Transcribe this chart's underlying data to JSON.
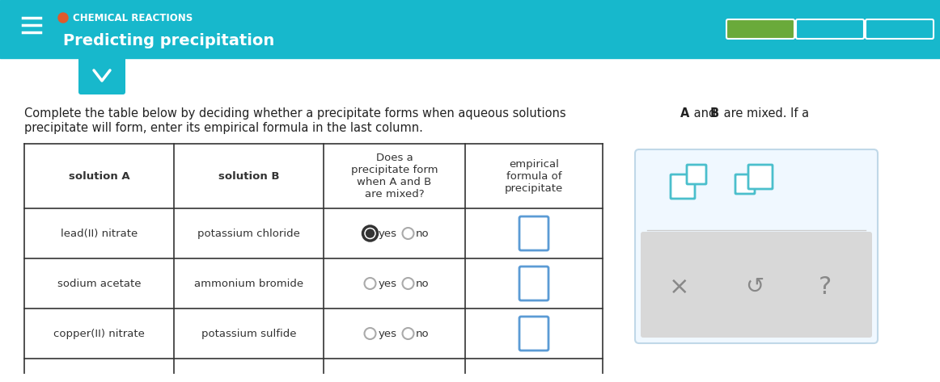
{
  "header_bg": "#17B8CC",
  "header_text_color": "#ffffff",
  "header_label": "CHEMICAL REACTIONS",
  "header_title": "Predicting precipitation",
  "header_dot_color": "#e05a2b",
  "page_bg": "#ffffff",
  "body_text": "Complete the table below by deciding whether a precipitate forms when aqueous solutions",
  "body_text_bold_A": "A",
  "body_text_mid": "and",
  "body_text_bold_B": "B",
  "body_text_end": "are mixed. If a\nprecipitate will form, enter its empirical formula in the last column.",
  "col_headers": [
    "solution A",
    "solution B",
    "Does a\nprecipitate form\nwhen A and B\nare mixed?",
    "empirical\nformula of\nprecipitate"
  ],
  "rows": [
    [
      "lead(II) nitrate",
      "potassium chloride",
      "yes_selected",
      "input_box"
    ],
    [
      "sodium acetate",
      "ammonium bromide",
      "yes_no",
      "input_box"
    ],
    [
      "copper(II) nitrate",
      "potassium sulfide",
      "yes_no",
      "input_box"
    ]
  ],
  "table_border": "#333333",
  "table_text_color": "#333333",
  "col_header_bold": true,
  "input_box_border": "#5b9bd5",
  "radio_selected_color": "#333333",
  "radio_unselected_color": "#aaaaaa",
  "progress_green": "#6aaa3a",
  "progress_empty": "#17B8CC",
  "progress_border": "#ffffff",
  "side_panel_bg": "#f0f8ff",
  "side_panel_border": "#c0d8e8",
  "teal_icon_color": "#4bbfcc",
  "gray_icon_color": "#a0a0a0",
  "chevron_bg": "#17B8CC",
  "chevron_color": "#ffffff"
}
